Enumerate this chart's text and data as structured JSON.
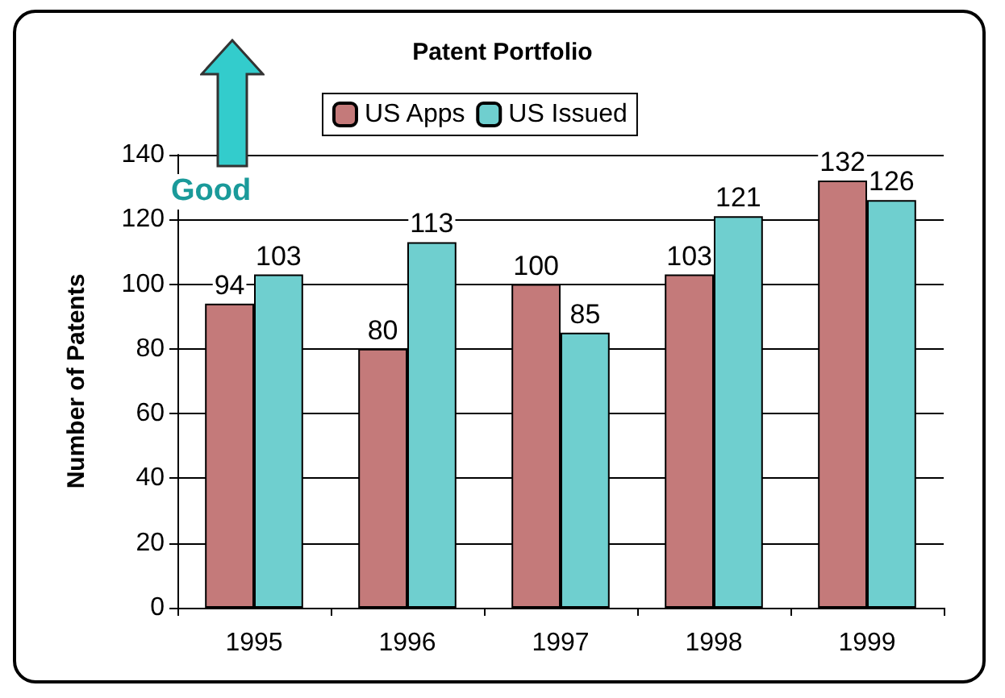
{
  "chart_data": {
    "type": "bar",
    "title": "Patent Portfolio",
    "ylabel": "Number of Patents",
    "categories": [
      "1995",
      "1996",
      "1997",
      "1998",
      "1999"
    ],
    "series": [
      {
        "name": "US Apps",
        "color": "#c47a7a",
        "values": [
          94,
          80,
          100,
          103,
          132
        ]
      },
      {
        "name": "US Issued",
        "color": "#6fcfcf",
        "values": [
          103,
          113,
          85,
          121,
          126
        ]
      }
    ],
    "ylim": [
      0,
      140
    ],
    "yticks": [
      0,
      20,
      40,
      60,
      80,
      100,
      120,
      140
    ],
    "grid": "y",
    "legend": "top",
    "data_labels": true,
    "annotations": [
      "Good"
    ]
  }
}
